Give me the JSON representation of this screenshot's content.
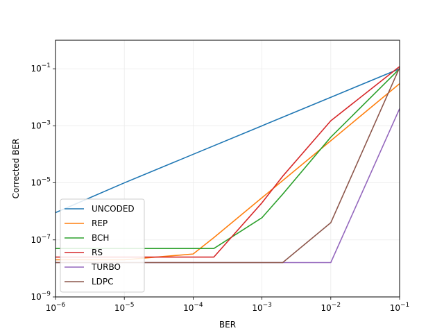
{
  "chart_data": {
    "type": "line",
    "xlabel": "BER",
    "ylabel": "Corrected BER",
    "xscale": "log",
    "yscale": "log",
    "xlim": [
      1e-06,
      0.1
    ],
    "ylim": [
      1e-09,
      1
    ],
    "grid": true,
    "legend_position": "lower-left",
    "x_ticks": [
      {
        "value": 1e-06,
        "base": "10",
        "exp": "−6"
      },
      {
        "value": 1e-05,
        "base": "10",
        "exp": "−5"
      },
      {
        "value": 0.0001,
        "base": "10",
        "exp": "−4"
      },
      {
        "value": 0.001,
        "base": "10",
        "exp": "−3"
      },
      {
        "value": 0.01,
        "base": "10",
        "exp": "−2"
      },
      {
        "value": 0.1,
        "base": "10",
        "exp": "−1"
      }
    ],
    "y_ticks": [
      {
        "value": 1e-09,
        "base": "10",
        "exp": "−9"
      },
      {
        "value": 1e-07,
        "base": "10",
        "exp": "−7"
      },
      {
        "value": 1e-05,
        "base": "10",
        "exp": "−5"
      },
      {
        "value": 0.001,
        "base": "10",
        "exp": "−3"
      },
      {
        "value": 0.1,
        "base": "10",
        "exp": "−1"
      }
    ],
    "series": [
      {
        "name": "UNCODED",
        "color": "#1f77b4",
        "x": [
          1e-06,
          1e-05,
          0.0001,
          0.001,
          0.01,
          0.1
        ],
        "y": [
          9e-07,
          1e-05,
          0.0001,
          0.001,
          0.01,
          0.1
        ]
      },
      {
        "name": "REP",
        "color": "#ff7f0e",
        "x": [
          1e-06,
          1e-05,
          0.0001,
          0.0002,
          0.001,
          0.01,
          0.1
        ],
        "y": [
          2e-08,
          2e-08,
          3.2e-08,
          1.2e-07,
          3e-06,
          0.0003,
          0.03
        ]
      },
      {
        "name": "BCH",
        "color": "#2ca02c",
        "x": [
          1e-06,
          0.0001,
          0.0002,
          0.001,
          0.002,
          0.01,
          0.1
        ],
        "y": [
          5e-08,
          5e-08,
          5e-08,
          6e-07,
          4e-06,
          0.0004,
          0.1
        ]
      },
      {
        "name": "RS",
        "color": "#d62728",
        "x": [
          1e-06,
          0.0001,
          0.0002,
          0.001,
          0.002,
          0.01,
          0.1
        ],
        "y": [
          2.5e-08,
          2.5e-08,
          2.5e-08,
          2e-06,
          1.7e-05,
          0.0015,
          0.12
        ]
      },
      {
        "name": "TURBO",
        "color": "#9467bd",
        "x": [
          1e-06,
          0.001,
          0.01,
          0.1
        ],
        "y": [
          1.6e-08,
          1.6e-08,
          1.6e-08,
          0.004
        ]
      },
      {
        "name": "LDPC",
        "color": "#8c564b",
        "x": [
          1e-06,
          0.001,
          0.002,
          0.01,
          0.1
        ],
        "y": [
          1.6e-08,
          1.6e-08,
          1.6e-08,
          4e-07,
          0.11
        ]
      }
    ]
  }
}
